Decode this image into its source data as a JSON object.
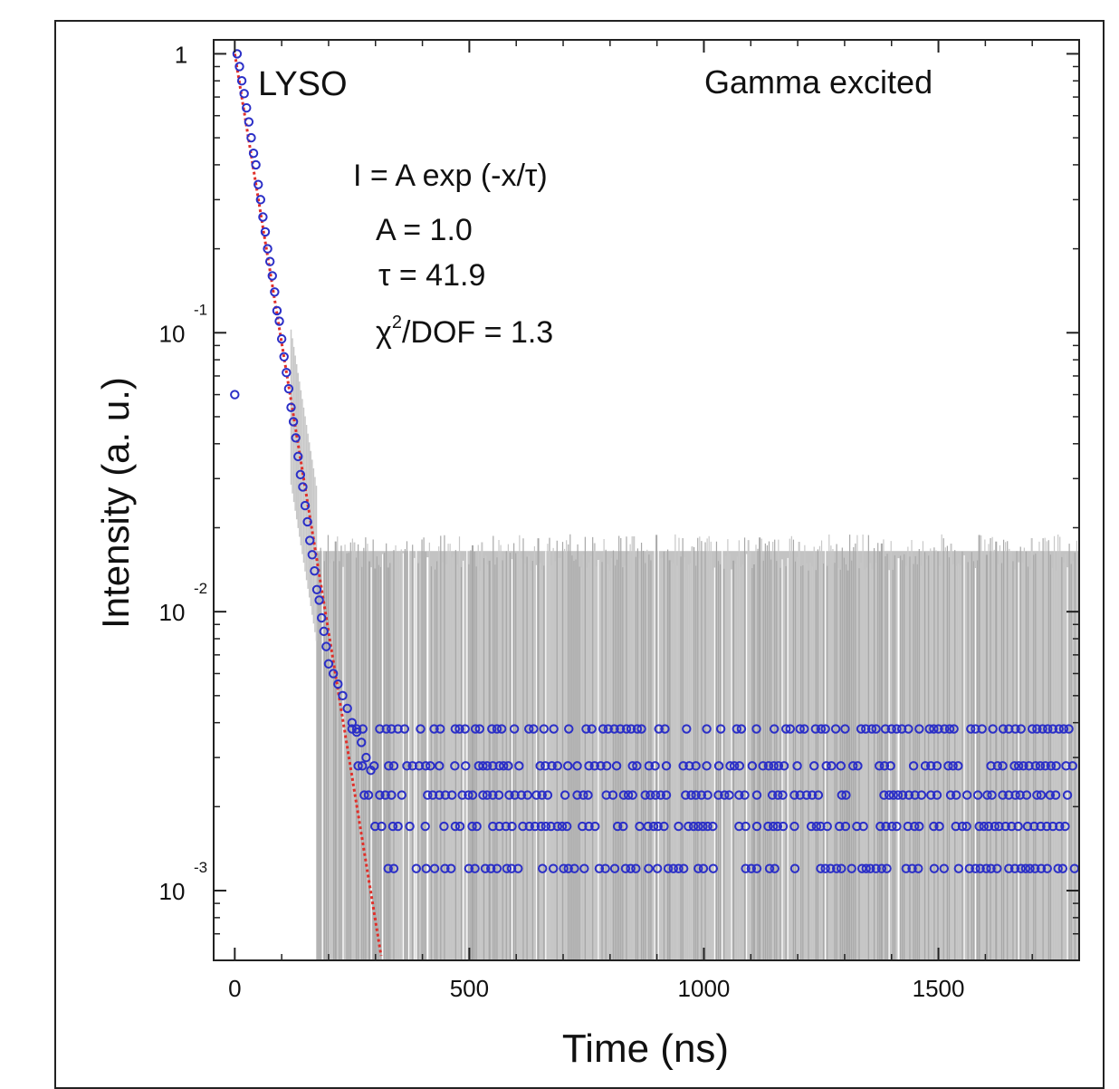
{
  "chart_data": {
    "type": "scatter",
    "title": "",
    "xlabel": "Time (ns)",
    "ylabel": "Intensity (a. u.)",
    "xlim": [
      -45,
      1800
    ],
    "ylim_log10": [
      -3.25,
      0.05
    ],
    "y_scale": "log",
    "xticks": [
      0,
      500,
      1000,
      1500
    ],
    "xtick_labels": [
      "0",
      "500",
      "1000",
      "1500"
    ],
    "yticks": [
      {
        "value": 1,
        "base": "1",
        "exp": ""
      },
      {
        "value": 0.1,
        "base": "10",
        "exp": "-1"
      },
      {
        "value": 0.01,
        "base": "10",
        "exp": "-2"
      },
      {
        "value": 0.001,
        "base": "10",
        "exp": "-3"
      }
    ],
    "annotations": {
      "sample": "LYSO",
      "excitation": "Gamma excited",
      "fit_formula": "I = A exp (-x/τ)",
      "fit_A": "A = 1.0",
      "fit_tau": "τ = 41.9",
      "fit_chi_base": "χ",
      "fit_chi_exp": "2",
      "fit_chi_rest": "/DOF = 1.3"
    },
    "series": [
      {
        "values_note": "",
        "color": "#2b2fc7",
        "data": [
          [
            0,
            0.06
          ],
          [
            5,
            1.0
          ],
          [
            10,
            0.9
          ],
          [
            15,
            0.8
          ],
          [
            20,
            0.72
          ],
          [
            25,
            0.64
          ],
          [
            30,
            0.57
          ],
          [
            35,
            0.5
          ],
          [
            40,
            0.44
          ],
          [
            45,
            0.4
          ],
          [
            50,
            0.34
          ],
          [
            55,
            0.3
          ],
          [
            60,
            0.26
          ],
          [
            65,
            0.23
          ],
          [
            70,
            0.2
          ],
          [
            75,
            0.18
          ],
          [
            80,
            0.16
          ],
          [
            85,
            0.14
          ],
          [
            90,
            0.12
          ],
          [
            95,
            0.11
          ],
          [
            100,
            0.095
          ],
          [
            105,
            0.082
          ],
          [
            110,
            0.072
          ],
          [
            115,
            0.063
          ],
          [
            120,
            0.054
          ],
          [
            125,
            0.048
          ],
          [
            130,
            0.042
          ],
          [
            135,
            0.036
          ],
          [
            140,
            0.031
          ],
          [
            145,
            0.028
          ],
          [
            150,
            0.024
          ],
          [
            155,
            0.021
          ],
          [
            160,
            0.018
          ],
          [
            165,
            0.016
          ],
          [
            170,
            0.014
          ],
          [
            175,
            0.012
          ],
          [
            180,
            0.011
          ],
          [
            185,
            0.0095
          ],
          [
            190,
            0.0085
          ],
          [
            195,
            0.0075
          ],
          [
            200,
            0.0065
          ],
          [
            210,
            0.006
          ],
          [
            220,
            0.0055
          ],
          [
            230,
            0.005
          ],
          [
            240,
            0.0045
          ],
          [
            250,
            0.004
          ],
          [
            260,
            0.0037
          ],
          [
            270,
            0.0034
          ],
          [
            280,
            0.003
          ],
          [
            290,
            0.0027
          ]
        ]
      },
      {
        "values_note": "",
        "color": "#2b2fc7",
        "baseline_levels": [
          0.0038,
          0.0028,
          0.0022,
          0.0017,
          0.0012
        ],
        "x_start": 250,
        "x_end": 1790
      }
    ],
    "fit": {
      "type": "exp",
      "A": 1.0,
      "tau": 41.9,
      "x_start": 0,
      "x_end": 330,
      "color": "#e0302a"
    },
    "error_band": {
      "x_start": 175,
      "x_end": 1800,
      "upper": 0.0165,
      "color": "#b8b8b8"
    },
    "grid": false
  }
}
